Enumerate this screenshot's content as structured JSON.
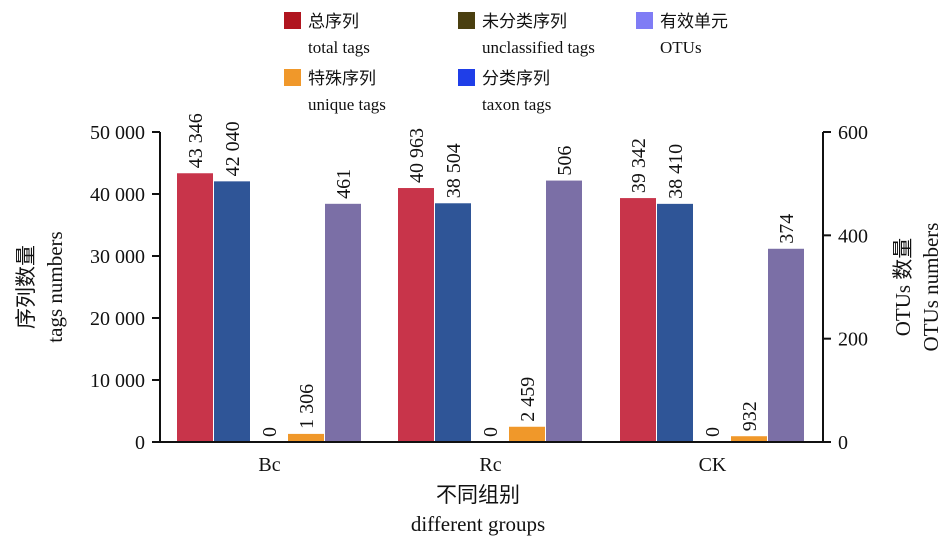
{
  "chart_data": {
    "type": "bar",
    "categories": [
      "Bc",
      "Rc",
      "CK"
    ],
    "series": [
      {
        "name_zh": "总序列",
        "name_en": "total tags",
        "axis": "left",
        "color": "#c8344a",
        "legend_color": "#b0151f",
        "values": [
          43346,
          40963,
          39342
        ],
        "labels": [
          "43 346",
          "40 963",
          "39 342"
        ]
      },
      {
        "name_zh": "分类序列",
        "name_en": "taxon tags",
        "axis": "left",
        "color": "#2f5597",
        "legend_color": "#1f3ee8",
        "values": [
          42040,
          38504,
          38410
        ],
        "labels": [
          "42 040",
          "38 504",
          "38 410"
        ]
      },
      {
        "name_zh": "未分类序列",
        "name_en": "unclassified tags",
        "axis": "left",
        "color": "#4a3f10",
        "legend_color": "#4a3f10",
        "values": [
          0,
          0,
          0
        ],
        "labels": [
          "0",
          "0",
          "0"
        ]
      },
      {
        "name_zh": "特殊序列",
        "name_en": "unique tags",
        "axis": "left",
        "color": "#f0982a",
        "legend_color": "#f0982a",
        "values": [
          1306,
          2459,
          932
        ],
        "labels": [
          "1 306",
          "2 459",
          "932"
        ]
      },
      {
        "name_zh": "有效单元",
        "name_en": "OTUs",
        "axis": "right",
        "color": "#7b6fa6",
        "legend_color": "#7f7cf5",
        "values": [
          461,
          506,
          374
        ],
        "labels": [
          "461",
          "506",
          "374"
        ]
      }
    ],
    "y_left": {
      "label_zh": "序列数量",
      "label_en": "tags numbers",
      "ylim": [
        0,
        50000
      ],
      "ticks": [
        "0",
        "10 000",
        "20 000",
        "30 000",
        "40 000",
        "50 000"
      ],
      "tick_values": [
        0,
        10000,
        20000,
        30000,
        40000,
        50000
      ]
    },
    "y_right": {
      "label_zh": "OTUs 数量",
      "label_en": "OTUs numbers",
      "ylim": [
        0,
        600
      ],
      "ticks": [
        "0",
        "200",
        "400",
        "600"
      ],
      "tick_values": [
        0,
        200,
        400,
        600
      ]
    },
    "x": {
      "label_zh": "不同组别",
      "label_en": "different groups"
    },
    "legend_placement": "top",
    "grid": false
  }
}
